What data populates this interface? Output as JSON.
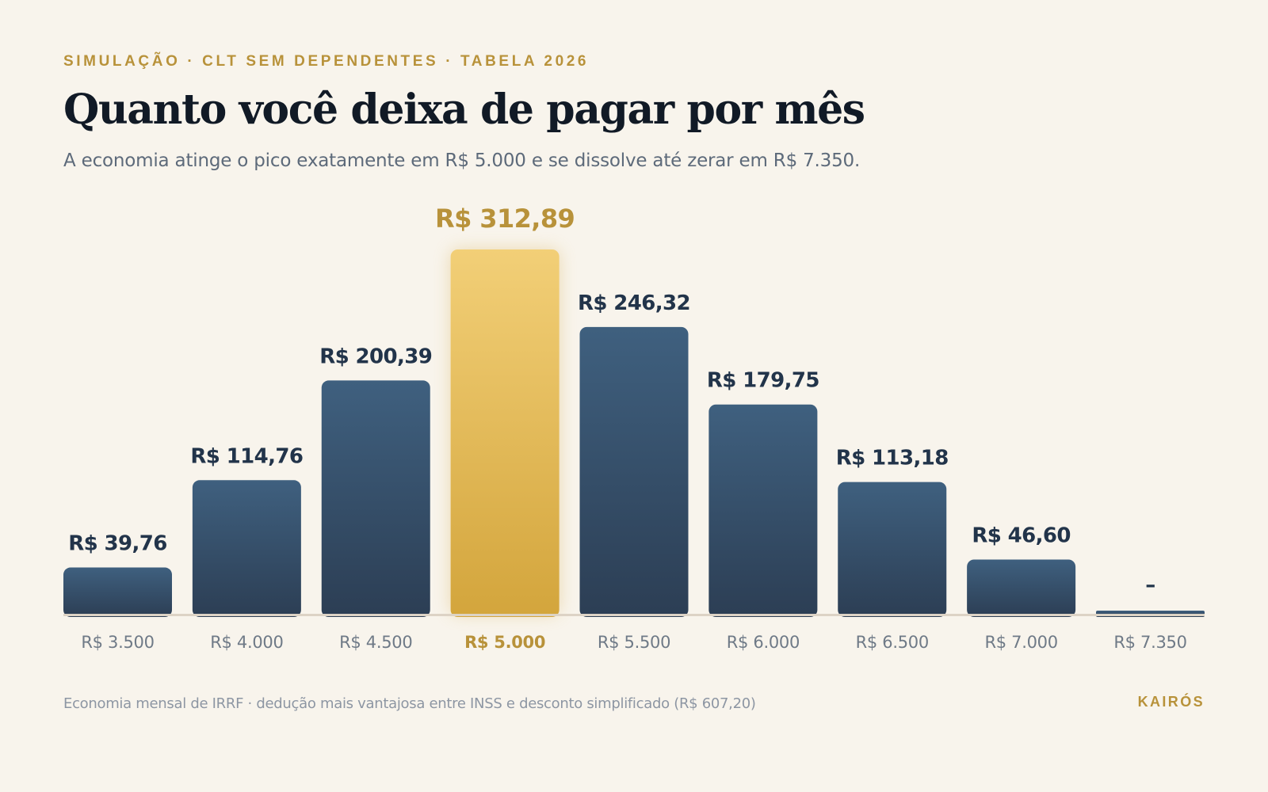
{
  "header": {
    "kicker": "SIMULAÇÃO · CLT SEM DEPENDENTES · TABELA 2026",
    "title": "Quanto você deixa de pagar por mês",
    "subtitle": "A economia atinge o pico exatamente em R$ 5.000 e se dissolve até zerar em R$ 7.350."
  },
  "footer": {
    "note": "Economia mensal de IRRF · dedução mais vantajosa entre INSS e desconto simplificado (R$ 607,20)",
    "brand": "KAIRÓS"
  },
  "colors": {
    "background": "#f8f4ec",
    "bar_top": "#3f607f",
    "bar_bottom": "#2c3e54",
    "highlight_top": "#f2cf77",
    "highlight_bottom": "#d3a53c",
    "value_label": "#22344a",
    "highlight_label": "#b8923a",
    "category_label": "#6f7a87",
    "baseline": "#ddd3c5"
  },
  "chart_data": {
    "type": "bar",
    "categories": [
      "R$ 3.500",
      "R$ 4.000",
      "R$ 4.500",
      "R$ 5.000",
      "R$ 5.500",
      "R$ 6.000",
      "R$ 6.500",
      "R$ 7.000",
      "R$ 7.350"
    ],
    "values": [
      39.76,
      114.76,
      200.39,
      312.89,
      246.32,
      179.75,
      113.18,
      46.6,
      0
    ],
    "value_labels": [
      "R$ 39,76",
      "R$ 114,76",
      "R$ 200,39",
      "R$ 312,89",
      "R$ 246,32",
      "R$ 179,75",
      "R$ 113,18",
      "R$ 46,60",
      "–"
    ],
    "highlight_category": "R$ 5.000",
    "title": "",
    "xlabel": "",
    "ylabel": "",
    "ylim": [
      0,
      312.89
    ],
    "grid": false,
    "legend": "none"
  }
}
